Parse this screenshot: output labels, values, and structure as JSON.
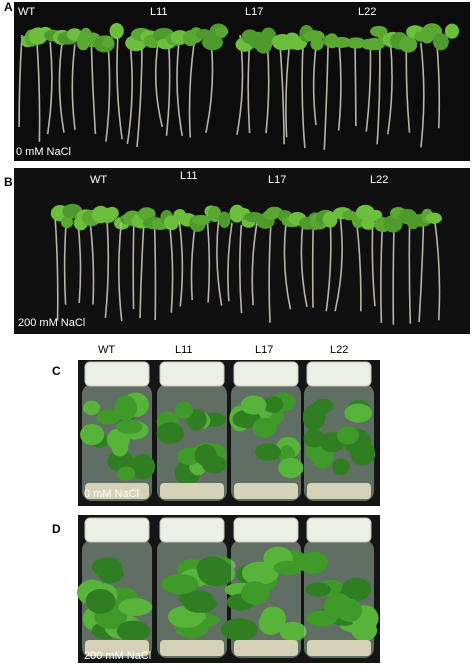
{
  "panels": [
    {
      "letter": "A",
      "lines": [
        "WT",
        "L11",
        "L17",
        "L22"
      ],
      "condition": "0 mM NaCl"
    },
    {
      "letter": "B",
      "lines": [
        "WT",
        "L11",
        "L17",
        "L22"
      ],
      "condition": "200 mM NaCl"
    },
    {
      "letter": "C",
      "lines": [
        "WT",
        "L11",
        "L17",
        "L22"
      ],
      "condition": "0 mM NaCl"
    },
    {
      "letter": "D",
      "condition": "200 mM NaCl"
    }
  ]
}
